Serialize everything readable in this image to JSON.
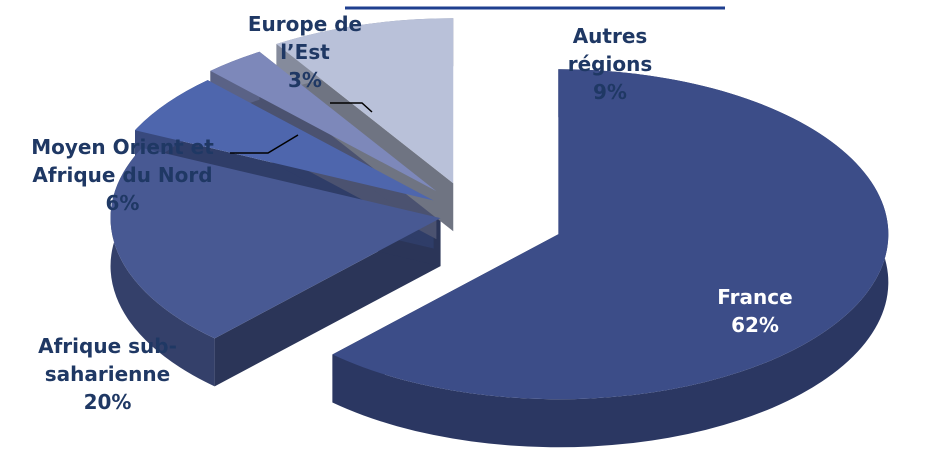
{
  "chart_data": {
    "type": "pie",
    "categories": [
      "France",
      "Afrique sub-saharienne",
      "Moyen Orient et Afrique du Nord",
      "Europe de l’Est",
      "Autres régions"
    ],
    "values": [
      62,
      20,
      6,
      3,
      9
    ],
    "value_labels": [
      "62%",
      "20%",
      "6%",
      "3%",
      "9%"
    ],
    "colors": [
      "#3c4d88",
      "#485993",
      "#4e66ad",
      "#7d88ba",
      "#b9c1d9"
    ]
  }
}
